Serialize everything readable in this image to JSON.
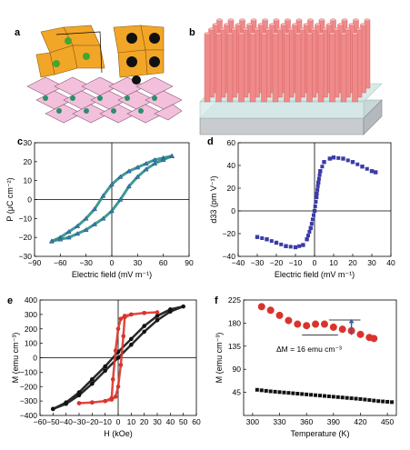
{
  "panels": {
    "a": {
      "letter": "a"
    },
    "b": {
      "letter": "b"
    },
    "c": {
      "letter": "c"
    },
    "d": {
      "letter": "d"
    },
    "e": {
      "letter": "e"
    },
    "f": {
      "letter": "f"
    }
  },
  "colors": {
    "teal": "#2a8f8a",
    "purple": "#3a3aa8",
    "black": "#111111",
    "red": "#d9342b",
    "pillar": "#f08a8a",
    "substrate": "#c8d8d8",
    "octa_orange": "#f0a020",
    "octa_pink": "#f0b8d8"
  },
  "chart_data": [
    {
      "id": "c",
      "type": "line",
      "xlabel": "Electric field (mV m⁻¹)",
      "ylabel": "P (μC cm⁻²)",
      "xlim": [
        -90,
        90
      ],
      "ylim": [
        -30,
        30
      ],
      "xticks": [
        -90,
        -60,
        -30,
        0,
        30,
        60,
        90
      ],
      "yticks": [
        -30,
        -20,
        -10,
        0,
        10,
        20,
        30
      ],
      "series": [
        {
          "branch": "upper",
          "x": [
            -70,
            -60,
            -50,
            -40,
            -30,
            -20,
            -10,
            0,
            10,
            20,
            30,
            40,
            50,
            60,
            70
          ],
          "y": [
            -22,
            -20,
            -17,
            -14,
            -10,
            -5,
            2,
            8,
            12,
            15,
            17,
            19,
            21,
            22,
            23
          ]
        },
        {
          "branch": "lower",
          "x": [
            70,
            60,
            50,
            40,
            30,
            20,
            10,
            0,
            -10,
            -20,
            -30,
            -40,
            -50,
            -60,
            -70
          ],
          "y": [
            23,
            21,
            19,
            16,
            12,
            7,
            0,
            -6,
            -10,
            -13,
            -16,
            -18,
            -20,
            -21,
            -22
          ]
        }
      ]
    },
    {
      "id": "d",
      "type": "scatter",
      "xlabel": "Electric field (mV m⁻¹)",
      "ylabel": "d33 (pm V⁻¹)",
      "xlim": [
        -40,
        40
      ],
      "ylim": [
        -40,
        60
      ],
      "xticks": [
        -40,
        -30,
        -20,
        -10,
        0,
        10,
        20,
        30,
        40
      ],
      "yticks": [
        -40,
        -20,
        0,
        20,
        40,
        60
      ],
      "series": [
        {
          "x": [
            -30,
            -25,
            -20,
            -15,
            -10,
            -6,
            -4,
            -2,
            0,
            1,
            2,
            3,
            5,
            8,
            10,
            15,
            20,
            25,
            30,
            32
          ],
          "y": [
            -23,
            -25,
            -28,
            -31,
            -32,
            -30,
            -25,
            -15,
            0,
            12,
            25,
            35,
            43,
            46,
            47,
            46,
            43,
            39,
            35,
            34
          ]
        }
      ]
    },
    {
      "id": "e",
      "type": "scatter",
      "xlabel": "H (kOe)",
      "ylabel": "M (emu cm⁻³)",
      "xlim": [
        -60,
        60
      ],
      "ylim": [
        -400,
        400
      ],
      "xticks": [
        -60,
        -50,
        -40,
        -30,
        -20,
        -10,
        0,
        10,
        20,
        30,
        40,
        50,
        60
      ],
      "yticks": [
        -400,
        -300,
        -200,
        -100,
        0,
        100,
        200,
        300,
        400
      ],
      "series": [
        {
          "name": "",
          "color": "black",
          "x": [
            -50,
            -40,
            -30,
            -20,
            -10,
            0,
            10,
            20,
            30,
            40,
            50,
            40,
            30,
            20,
            10,
            0,
            -10,
            -20,
            -30,
            -40,
            -50
          ],
          "y": [
            -355,
            -320,
            -260,
            -180,
            -90,
            0,
            90,
            180,
            260,
            320,
            355,
            335,
            290,
            220,
            130,
            40,
            -60,
            -150,
            -240,
            -310,
            -355
          ]
        },
        {
          "name": "",
          "color": "red",
          "x": [
            -30,
            -20,
            -10,
            -5,
            -2,
            0,
            2,
            4,
            5,
            10,
            20,
            30,
            20,
            10,
            5,
            2,
            0,
            -2,
            -4,
            -5,
            -10,
            -20,
            -30
          ],
          "y": [
            -315,
            -310,
            -300,
            -290,
            -270,
            -200,
            -50,
            150,
            280,
            300,
            310,
            315,
            310,
            300,
            290,
            270,
            200,
            50,
            -150,
            -280,
            -300,
            -310,
            -315
          ]
        }
      ]
    },
    {
      "id": "f",
      "type": "scatter",
      "xlabel": "Temperature (K)",
      "ylabel": "M (emu cm⁻³)",
      "xlim": [
        290,
        460
      ],
      "ylim": [
        0,
        225
      ],
      "xticks": [
        300,
        330,
        360,
        390,
        420,
        450
      ],
      "yticks": [
        45,
        90,
        135,
        180,
        225
      ],
      "annotation": "ΔM = 16 emu cm⁻³",
      "series": [
        {
          "name": "",
          "color": "red",
          "x": [
            310,
            320,
            330,
            340,
            350,
            360,
            370,
            380,
            390,
            400,
            410,
            420,
            430,
            435
          ],
          "y": [
            212,
            205,
            195,
            185,
            178,
            175,
            178,
            178,
            172,
            168,
            165,
            158,
            152,
            150
          ]
        },
        {
          "name": "",
          "color": "black",
          "x": [
            305,
            320,
            340,
            360,
            380,
            400,
            420,
            440,
            455
          ],
          "y": [
            50,
            47,
            44,
            41,
            38,
            35,
            32,
            28,
            26
          ]
        }
      ]
    }
  ]
}
